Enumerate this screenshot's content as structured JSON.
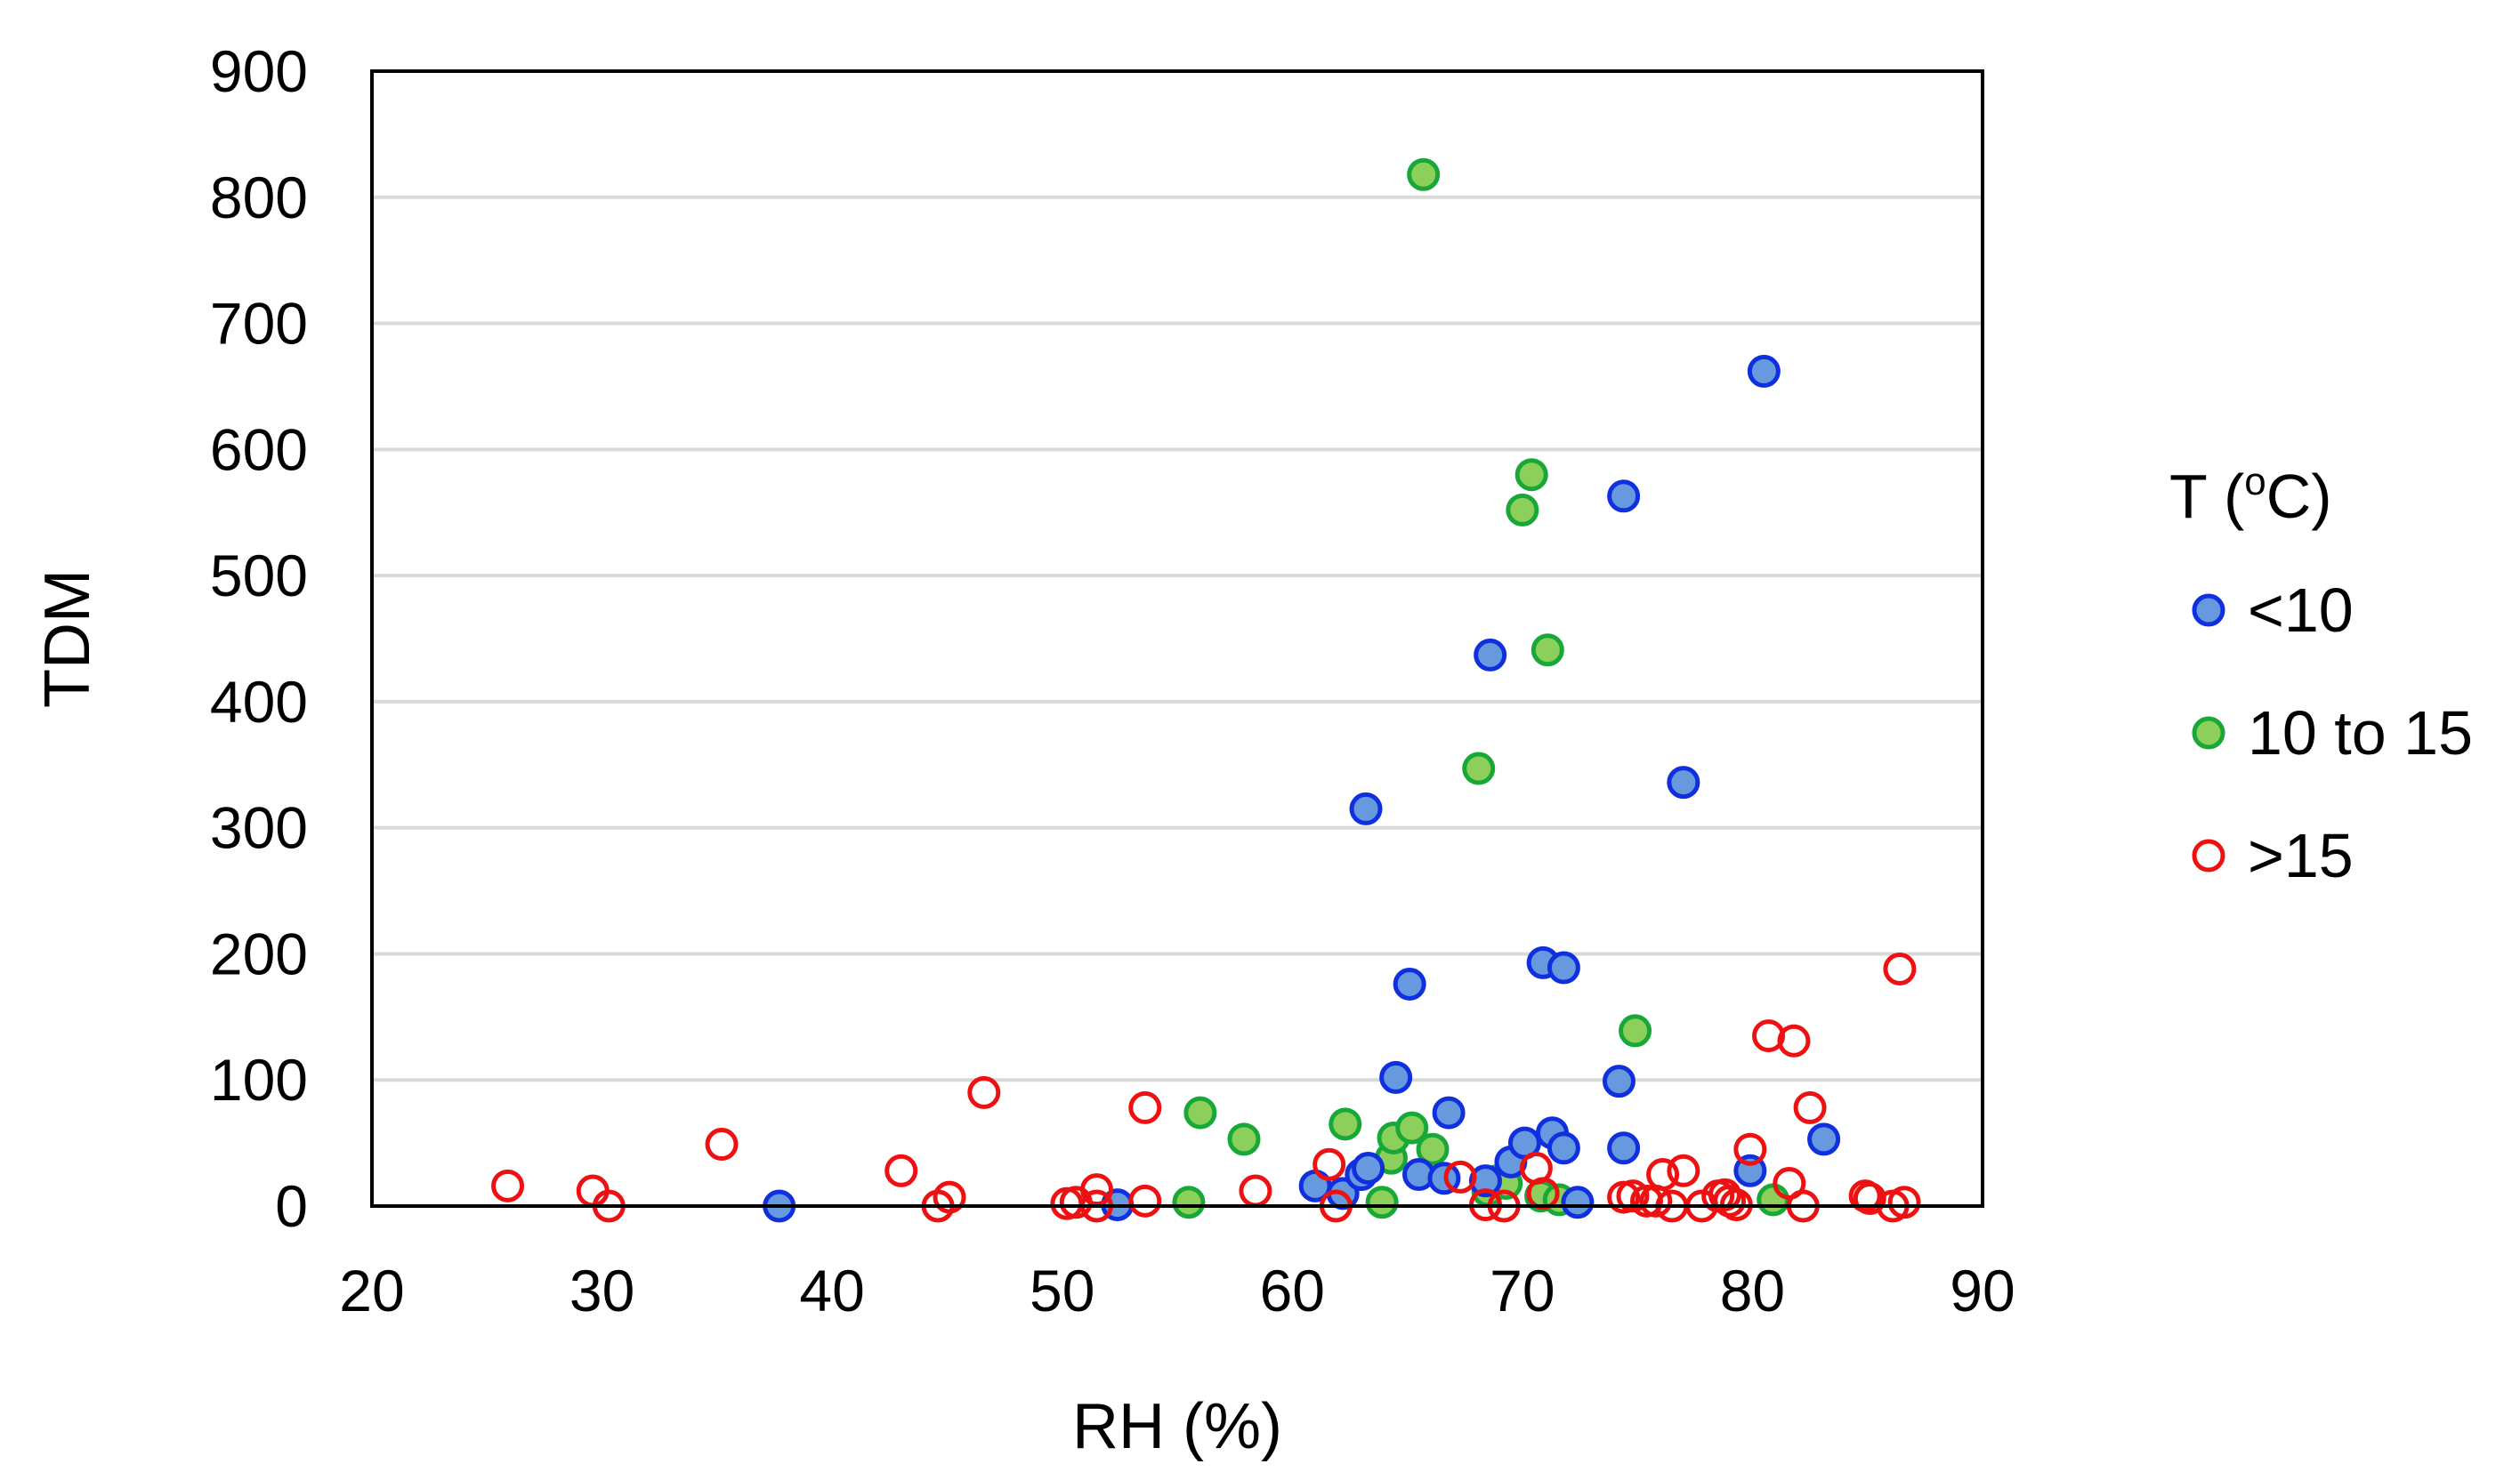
{
  "chart_data": {
    "type": "scatter",
    "title": "",
    "xlabel": "RH (%)",
    "ylabel": "TDM",
    "xlim": [
      20,
      90
    ],
    "ylim": [
      0,
      900
    ],
    "xticks": [
      20,
      30,
      40,
      50,
      60,
      70,
      80,
      90
    ],
    "yticks": [
      0,
      100,
      200,
      300,
      400,
      500,
      600,
      700,
      800,
      900
    ],
    "grid": "horizontal",
    "legend": {
      "title_main": "T (",
      "title_sup": "o",
      "title_end": "C)",
      "position": "right"
    },
    "series": [
      {
        "name": "<10",
        "fill": "#6699dd",
        "stroke": "#1030e0",
        "points": [
          [
            37.7,
            0
          ],
          [
            52.4,
            1
          ],
          [
            61.0,
            16
          ],
          [
            62.2,
            10
          ],
          [
            63.0,
            25
          ],
          [
            63.2,
            315
          ],
          [
            63.3,
            30
          ],
          [
            64.5,
            102
          ],
          [
            65.1,
            176
          ],
          [
            65.5,
            25
          ],
          [
            66.6,
            22
          ],
          [
            66.8,
            74
          ],
          [
            68.4,
            20
          ],
          [
            68.6,
            437
          ],
          [
            69.5,
            35
          ],
          [
            70.1,
            50
          ],
          [
            70.9,
            193
          ],
          [
            71.3,
            58
          ],
          [
            71.8,
            46
          ],
          [
            71.8,
            189
          ],
          [
            72.4,
            3
          ],
          [
            74.2,
            99
          ],
          [
            74.4,
            46
          ],
          [
            74.4,
            563
          ],
          [
            77.0,
            336
          ],
          [
            79.9,
            28
          ],
          [
            80.5,
            662
          ],
          [
            83.1,
            53
          ]
        ]
      },
      {
        "name": "10 to 15",
        "fill": "#8ccf5a",
        "stroke": "#18a838",
        "points": [
          [
            55.5,
            3
          ],
          [
            56.0,
            74
          ],
          [
            57.9,
            53
          ],
          [
            62.3,
            65
          ],
          [
            63.0,
            25
          ],
          [
            63.9,
            3
          ],
          [
            64.3,
            38
          ],
          [
            64.4,
            54
          ],
          [
            65.2,
            62
          ],
          [
            65.7,
            818
          ],
          [
            66.1,
            45
          ],
          [
            68.1,
            347
          ],
          [
            68.5,
            12
          ],
          [
            68.9,
            20
          ],
          [
            69.3,
            18
          ],
          [
            70.0,
            552
          ],
          [
            70.4,
            580
          ],
          [
            70.8,
            8
          ],
          [
            71.1,
            441
          ],
          [
            71.6,
            5
          ],
          [
            74.9,
            139
          ],
          [
            80.9,
            5
          ]
        ]
      },
      {
        "name": ">15",
        "fill": "none",
        "stroke": "#ee1111",
        "points": [
          [
            25.9,
            16
          ],
          [
            29.6,
            12
          ],
          [
            30.3,
            0
          ],
          [
            35.2,
            49
          ],
          [
            43.0,
            28
          ],
          [
            44.6,
            0
          ],
          [
            45.1,
            7
          ],
          [
            46.6,
            90
          ],
          [
            50.2,
            2
          ],
          [
            50.6,
            3
          ],
          [
            51.5,
            13
          ],
          [
            51.5,
            0
          ],
          [
            53.6,
            78
          ],
          [
            53.6,
            4
          ],
          [
            58.4,
            12
          ],
          [
            61.6,
            33
          ],
          [
            61.9,
            0
          ],
          [
            67.3,
            23
          ],
          [
            68.4,
            1
          ],
          [
            69.2,
            0
          ],
          [
            70.6,
            30
          ],
          [
            70.9,
            10
          ],
          [
            74.4,
            7
          ],
          [
            74.8,
            8
          ],
          [
            75.4,
            4
          ],
          [
            75.8,
            4
          ],
          [
            76.1,
            25
          ],
          [
            76.5,
            0
          ],
          [
            77.0,
            28
          ],
          [
            77.8,
            0
          ],
          [
            78.5,
            8
          ],
          [
            78.8,
            9
          ],
          [
            79.0,
            4
          ],
          [
            79.3,
            1
          ],
          [
            79.9,
            45
          ],
          [
            80.7,
            135
          ],
          [
            81.6,
            18
          ],
          [
            81.8,
            131
          ],
          [
            82.2,
            0
          ],
          [
            82.5,
            78
          ],
          [
            84.9,
            8
          ],
          [
            85.1,
            6
          ],
          [
            86.1,
            0
          ],
          [
            86.4,
            188
          ],
          [
            86.6,
            3
          ]
        ]
      }
    ]
  }
}
